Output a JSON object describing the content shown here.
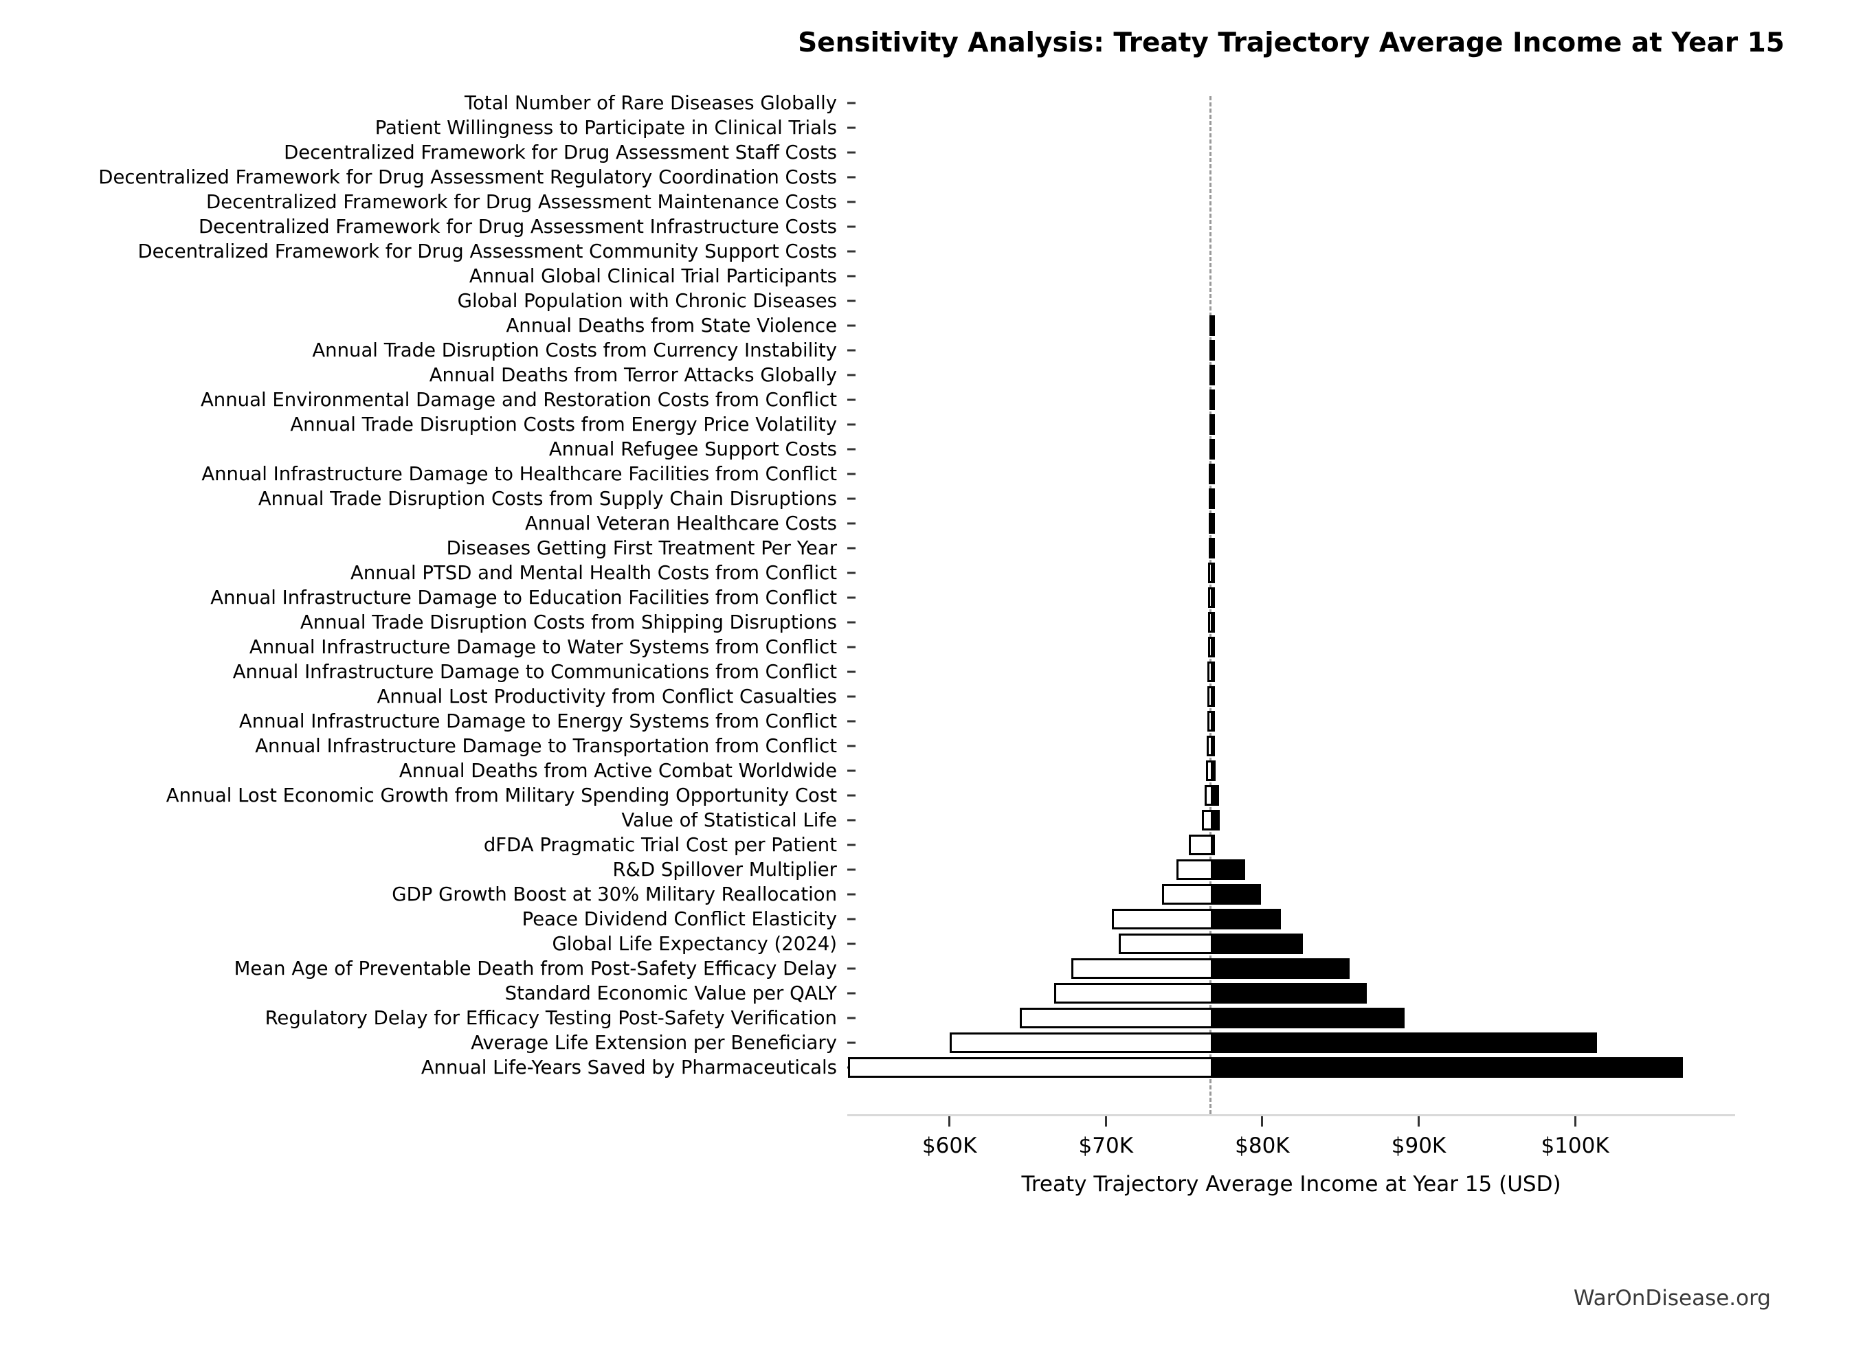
{
  "title": "Sensitivity Analysis: Treaty Trajectory Average Income at Year 15",
  "watermark": "WarOnDisease.org",
  "chart_data": {
    "type": "bar",
    "subtype": "tornado-horizontal",
    "title": "Sensitivity Analysis: Treaty Trajectory Average Income at Year 15",
    "xlabel": "Treaty Trajectory Average Income at Year 15 (USD)",
    "ylabel": "",
    "unit": "USD thousands",
    "baseline_value": 76.7,
    "xlim": [
      53.3,
      110.4
    ],
    "grid": false,
    "legend": "none",
    "colors": {
      "low_bar_fill": "#ffffff",
      "high_bar_fill": "#000000",
      "bar_edge": "#000000",
      "baseline_line": "#999999",
      "axis_line": "#d9d9d9",
      "tick": "#333333"
    },
    "x_ticks": [
      {
        "label": "$60K",
        "value": 60
      },
      {
        "label": "$70K",
        "value": 70
      },
      {
        "label": "$80K",
        "value": 80
      },
      {
        "label": "$90K",
        "value": 90
      },
      {
        "label": "$100K",
        "value": 100
      }
    ],
    "rows": [
      {
        "label": "Total Number of Rare Diseases Globally",
        "low": 76.7,
        "high": 76.7
      },
      {
        "label": "Patient Willingness to Participate in Clinical Trials",
        "low": 76.7,
        "high": 76.7
      },
      {
        "label": "Decentralized Framework for Drug Assessment Staff Costs",
        "low": 76.7,
        "high": 76.7
      },
      {
        "label": "Decentralized Framework for Drug Assessment Regulatory Coordination Costs",
        "low": 76.7,
        "high": 76.7
      },
      {
        "label": "Decentralized Framework for Drug Assessment Maintenance Costs",
        "low": 76.7,
        "high": 76.7
      },
      {
        "label": "Decentralized Framework for Drug Assessment Infrastructure Costs",
        "low": 76.7,
        "high": 76.7
      },
      {
        "label": "Decentralized Framework for Drug Assessment Community Support Costs",
        "low": 76.7,
        "high": 76.7
      },
      {
        "label": "Annual Global Clinical Trial Participants",
        "low": 76.7,
        "high": 76.7
      },
      {
        "label": "Global Population with Chronic Diseases",
        "low": 76.7,
        "high": 76.7
      },
      {
        "label": "Annual Deaths from State Violence",
        "low": 76.62,
        "high": 76.78
      },
      {
        "label": "Annual Trade Disruption Costs from Currency Instability",
        "low": 76.62,
        "high": 76.78
      },
      {
        "label": "Annual Deaths from Terror Attacks Globally",
        "low": 76.61,
        "high": 76.79
      },
      {
        "label": "Annual Environmental Damage and Restoration Costs from Conflict",
        "low": 76.61,
        "high": 76.79
      },
      {
        "label": "Annual Trade Disruption Costs from Energy Price Volatility",
        "low": 76.6,
        "high": 76.8
      },
      {
        "label": "Annual Refugee Support Costs",
        "low": 76.6,
        "high": 76.8
      },
      {
        "label": "Annual Infrastructure Damage to Healthcare Facilities from Conflict",
        "low": 76.59,
        "high": 76.81
      },
      {
        "label": "Annual Trade Disruption Costs from Supply Chain Disruptions",
        "low": 76.58,
        "high": 76.82
      },
      {
        "label": "Annual Veteran Healthcare Costs",
        "low": 76.57,
        "high": 76.83
      },
      {
        "label": "Diseases Getting First Treatment Per Year",
        "low": 76.56,
        "high": 76.84
      },
      {
        "label": "Annual PTSD and Mental Health Costs from Conflict",
        "low": 76.55,
        "high": 76.85
      },
      {
        "label": "Annual Infrastructure Damage to Education Facilities from Conflict",
        "low": 76.54,
        "high": 76.86
      },
      {
        "label": "Annual Trade Disruption Costs from Shipping Disruptions",
        "low": 76.53,
        "high": 76.87
      },
      {
        "label": "Annual Infrastructure Damage to Water Systems from Conflict",
        "low": 76.52,
        "high": 76.88
      },
      {
        "label": "Annual Infrastructure Damage to Communications from Conflict",
        "low": 76.51,
        "high": 76.89
      },
      {
        "label": "Annual Lost Productivity from Conflict Casualties",
        "low": 76.5,
        "high": 76.9
      },
      {
        "label": "Annual Infrastructure Damage to Energy Systems from Conflict",
        "low": 76.48,
        "high": 76.92
      },
      {
        "label": "Annual Infrastructure Damage to Transportation from Conflict",
        "low": 76.45,
        "high": 76.95
      },
      {
        "label": "Annual Deaths from Active Combat Worldwide",
        "low": 76.4,
        "high": 77.0
      },
      {
        "label": "Annual Lost Economic Growth from Military Spending Opportunity Cost",
        "low": 76.3,
        "high": 77.25
      },
      {
        "label": "Value of Statistical Life",
        "low": 76.15,
        "high": 77.3
      },
      {
        "label": "dFDA Pragmatic Trial Cost per Patient",
        "low": 75.3,
        "high": 76.8
      },
      {
        "label": "R&D Spillover Multiplier",
        "low": 74.5,
        "high": 78.9
      },
      {
        "label": "GDP Growth Boost at 30% Military Reallocation",
        "low": 73.6,
        "high": 79.9
      },
      {
        "label": "Peace Dividend Conflict Elasticity",
        "low": 70.4,
        "high": 81.2
      },
      {
        "label": "Global Life Expectancy (2024)",
        "low": 70.8,
        "high": 82.6
      },
      {
        "label": "Mean Age of Preventable Death from Post-Safety Efficacy Delay",
        "low": 67.8,
        "high": 85.6
      },
      {
        "label": "Standard Economic Value per QALY",
        "low": 66.7,
        "high": 86.7
      },
      {
        "label": "Regulatory Delay for Efficacy Testing Post-Safety Verification",
        "low": 64.5,
        "high": 89.1
      },
      {
        "label": "Average Life Extension per Beneficiary",
        "low": 60.0,
        "high": 101.4
      },
      {
        "label": "Annual Life-Years Saved by Pharmaceuticals",
        "low": 53.5,
        "high": 106.9
      }
    ]
  }
}
